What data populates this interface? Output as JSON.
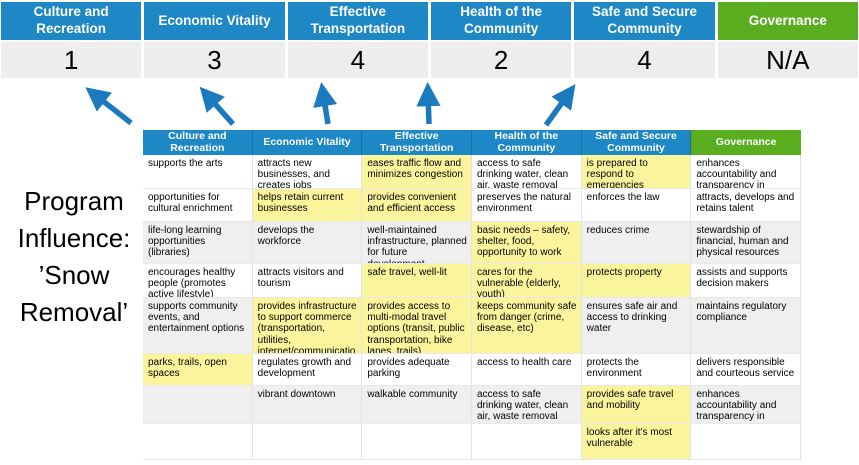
{
  "program_label": "Program Influence: ’Snow Removal’",
  "colors": {
    "header_blue": "#1E87C5",
    "header_green": "#5AAD1E",
    "highlight_yellow": "#FAF59D",
    "band_gray": "#EFEFEF",
    "score_bg": "#EDEDED",
    "arrow_blue": "#1B79BE"
  },
  "banner": {
    "columns": [
      {
        "label": "Culture and Recreation",
        "score": "1",
        "theme": "blue"
      },
      {
        "label": "Economic Vitality",
        "score": "3",
        "theme": "blue"
      },
      {
        "label": "Effective Transportation",
        "score": "4",
        "theme": "blue"
      },
      {
        "label": "Health of the Community",
        "score": "2",
        "theme": "blue"
      },
      {
        "label": "Safe and Secure Community",
        "score": "4",
        "theme": "blue"
      },
      {
        "label": "Governance",
        "score": "N/A",
        "theme": "green"
      }
    ]
  },
  "matrix": {
    "headers": [
      {
        "label": "Culture and Recreation",
        "theme": "blue"
      },
      {
        "label": "Economic Vitality",
        "theme": "blue"
      },
      {
        "label": "Effective Transportation",
        "theme": "blue"
      },
      {
        "label": "Health of the Community",
        "theme": "blue"
      },
      {
        "label": "Safe and Secure Community",
        "theme": "blue"
      },
      {
        "label": "Governance",
        "theme": "green"
      }
    ],
    "rows": [
      {
        "band": false,
        "cells": [
          {
            "text": "supports the arts",
            "highlight": false
          },
          {
            "text": "attracts new businesses, and creates jobs",
            "highlight": false
          },
          {
            "text": "eases traffic flow and minimizes congestion",
            "highlight": true
          },
          {
            "text": "access to safe drinking water, clean air, waste removal",
            "highlight": false
          },
          {
            "text": "is prepared to respond to emergencies",
            "highlight": true
          },
          {
            "text": "enhances accountability and transparency in operations",
            "highlight": false
          }
        ]
      },
      {
        "band": false,
        "cells": [
          {
            "text": "opportunities for cultural enrichment",
            "highlight": false
          },
          {
            "text": "helps retain current businesses",
            "highlight": true
          },
          {
            "text": "provides convenient and efficient access",
            "highlight": true
          },
          {
            "text": "preserves the natural environment",
            "highlight": false
          },
          {
            "text": "enforces the law",
            "highlight": false
          },
          {
            "text": "attracts, develops and retains talent",
            "highlight": false
          }
        ]
      },
      {
        "band": true,
        "cells": [
          {
            "text": "life-long learning opportunities (libraries)",
            "highlight": false
          },
          {
            "text": "develops the workforce",
            "highlight": false
          },
          {
            "text": "well-maintained infrastructure, planned for future development",
            "highlight": false
          },
          {
            "text": "basic needs – safety, shelter, food, opportunity to work",
            "highlight": true
          },
          {
            "text": "reduces crime",
            "highlight": false
          },
          {
            "text": "stewardship of financial, human and physical resources",
            "highlight": false
          }
        ]
      },
      {
        "band": false,
        "cells": [
          {
            "text": "encourages healthy people (promotes active lifestyle)",
            "highlight": false
          },
          {
            "text": "attracts visitors and tourism",
            "highlight": false
          },
          {
            "text": "safe travel, well-lit",
            "highlight": true
          },
          {
            "text": "cares for the vulnerable (elderly, youth)",
            "highlight": true
          },
          {
            "text": "protects property",
            "highlight": true
          },
          {
            "text": "assists and supports decision makers",
            "highlight": false
          }
        ]
      },
      {
        "band": true,
        "cells": [
          {
            "text": "supports community events, and entertainment options",
            "highlight": false
          },
          {
            "text": "provides infrastructure to support commerce (transportation, utilities, internet/communications, smart cities, etc)",
            "highlight": true
          },
          {
            "text": "provides access to multi-modal travel options (transit, public transportation, bike lanes, trails)",
            "highlight": true
          },
          {
            "text": "keeps community safe from danger (crime, disease, etc)",
            "highlight": true
          },
          {
            "text": "ensures safe air and access to drinking water",
            "highlight": false
          },
          {
            "text": "maintains regulatory compliance",
            "highlight": false
          }
        ]
      },
      {
        "band": false,
        "cells": [
          {
            "text": "parks, trails, open spaces",
            "highlight": true
          },
          {
            "text": "regulates growth and development",
            "highlight": false
          },
          {
            "text": "provides adequate parking",
            "highlight": false
          },
          {
            "text": "access to health care",
            "highlight": false
          },
          {
            "text": "protects the environment",
            "highlight": false
          },
          {
            "text": "delivers responsible and courteous service",
            "highlight": false
          }
        ]
      },
      {
        "band": true,
        "cells": [
          {
            "text": "",
            "highlight": false
          },
          {
            "text": "vibrant downtown",
            "highlight": false
          },
          {
            "text": "walkable community",
            "highlight": false
          },
          {
            "text": "access to safe drinking water, clean air, waste removal",
            "highlight": false
          },
          {
            "text": "provides safe travel and mobility",
            "highlight": true
          },
          {
            "text": "enhances accountability and transparency in operations",
            "highlight": false
          }
        ]
      },
      {
        "band": false,
        "cells": [
          {
            "text": "",
            "highlight": false
          },
          {
            "text": "",
            "highlight": false
          },
          {
            "text": "",
            "highlight": false
          },
          {
            "text": "",
            "highlight": false
          },
          {
            "text": "looks after it's most vulnerable",
            "highlight": true
          },
          {
            "text": "",
            "highlight": false
          }
        ]
      }
    ]
  }
}
